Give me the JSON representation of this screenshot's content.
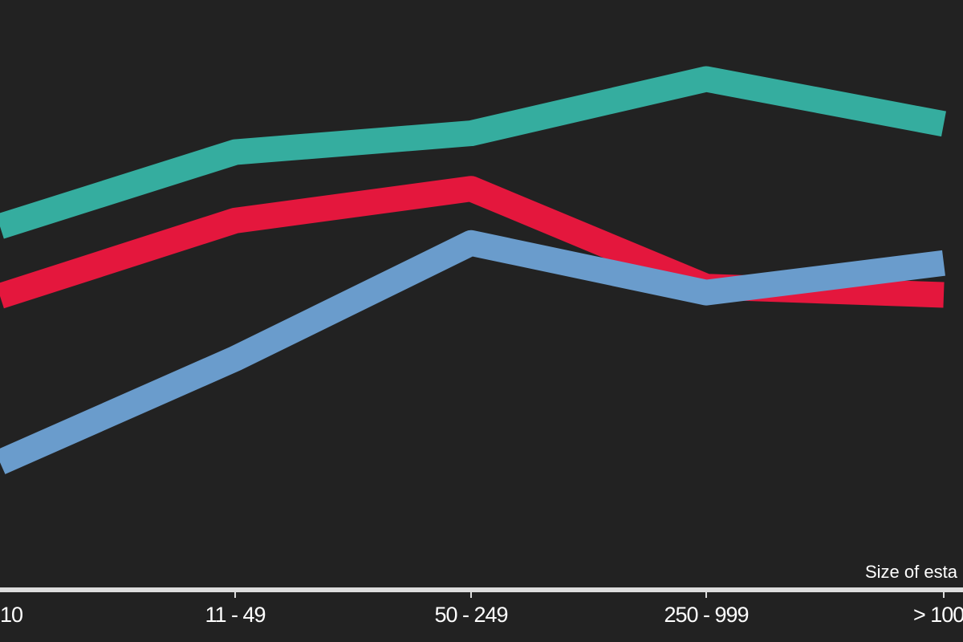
{
  "chart_data": {
    "type": "line",
    "xlabel": "Size of esta",
    "ylabel": "",
    "categories": [
      "10",
      "11 - 49",
      "50 - 249",
      "250 - 999",
      "> 100"
    ],
    "series": [
      {
        "color": "#35ad9f",
        "values": [
          62.8,
          69.1,
          70.7,
          75.3,
          71.5
        ]
      },
      {
        "color": "#e4173d",
        "values": [
          56.9,
          63.3,
          66.0,
          57.7,
          57.0
        ]
      },
      {
        "color": "#6a9ccc",
        "values": [
          42.8,
          51.6,
          61.4,
          57.2,
          59.7
        ]
      }
    ],
    "grid": false,
    "legend": "none"
  }
}
